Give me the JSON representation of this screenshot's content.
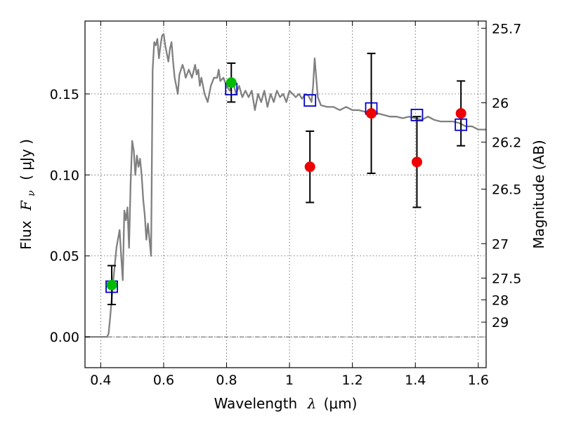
{
  "chart_data": {
    "type": "scatter",
    "xlabel": "Wavelength",
    "xlabel_symbol": "λ",
    "xlabel_unit": "(μm)",
    "ylabel": "Flux",
    "ylabel_symbol": "F",
    "ylabel_subscript": "ν",
    "ylabel_unit": "( μJy )",
    "y2label": "Magnitude (AB)",
    "xlim": [
      0.35,
      1.625
    ],
    "ylim": [
      -0.019,
      0.195
    ],
    "grid": true,
    "x_ticks": [
      {
        "value": 0.4,
        "label": "0.4"
      },
      {
        "value": 0.6,
        "label": "0.6"
      },
      {
        "value": 0.8,
        "label": "0.8"
      },
      {
        "value": 1.0,
        "label": "1"
      },
      {
        "value": 1.2,
        "label": "1.2"
      },
      {
        "value": 1.4,
        "label": "1.4"
      },
      {
        "value": 1.6,
        "label": "1.6"
      }
    ],
    "y_ticks": [
      {
        "value": 0.0,
        "label": "0.00"
      },
      {
        "value": 0.05,
        "label": "0.05"
      },
      {
        "value": 0.1,
        "label": "0.10"
      },
      {
        "value": 0.15,
        "label": "0.15"
      }
    ],
    "magnitude_ticks": [
      {
        "mag": 25.7,
        "label": "25.7"
      },
      {
        "mag": 26.0,
        "label": "26"
      },
      {
        "mag": 26.2,
        "label": "26.2"
      },
      {
        "mag": 26.5,
        "label": "26.5"
      },
      {
        "mag": 27.0,
        "label": "27"
      },
      {
        "mag": 27.5,
        "label": "27.5"
      },
      {
        "mag": 28.0,
        "label": "28"
      },
      {
        "mag": 29.0,
        "label": "29"
      }
    ],
    "model_spectrum": {
      "color": "#808080",
      "x": [
        0.35,
        0.42,
        0.425,
        0.43,
        0.44,
        0.45,
        0.46,
        0.465,
        0.47,
        0.475,
        0.48,
        0.485,
        0.49,
        0.495,
        0.5,
        0.505,
        0.51,
        0.515,
        0.52,
        0.525,
        0.53,
        0.535,
        0.54,
        0.545,
        0.55,
        0.555,
        0.56,
        0.565,
        0.57,
        0.575,
        0.58,
        0.585,
        0.59,
        0.595,
        0.6,
        0.605,
        0.61,
        0.615,
        0.62,
        0.625,
        0.63,
        0.635,
        0.64,
        0.645,
        0.65,
        0.66,
        0.665,
        0.67,
        0.68,
        0.69,
        0.7,
        0.705,
        0.71,
        0.715,
        0.72,
        0.73,
        0.74,
        0.75,
        0.76,
        0.77,
        0.775,
        0.78,
        0.79,
        0.8,
        0.81,
        0.82,
        0.83,
        0.84,
        0.85,
        0.86,
        0.87,
        0.88,
        0.89,
        0.9,
        0.91,
        0.92,
        0.93,
        0.94,
        0.95,
        0.96,
        0.97,
        0.98,
        0.99,
        1.0,
        1.01,
        1.02,
        1.03,
        1.04,
        1.05,
        1.06,
        1.07,
        1.075,
        1.08,
        1.085,
        1.09,
        1.1,
        1.12,
        1.14,
        1.16,
        1.18,
        1.2,
        1.22,
        1.24,
        1.26,
        1.28,
        1.3,
        1.32,
        1.34,
        1.36,
        1.38,
        1.4,
        1.42,
        1.44,
        1.46,
        1.48,
        1.5,
        1.52,
        1.54,
        1.56,
        1.58,
        1.6,
        1.625
      ],
      "y": [
        0.0,
        0.0,
        0.002,
        0.012,
        0.035,
        0.055,
        0.066,
        0.05,
        0.035,
        0.078,
        0.072,
        0.08,
        0.055,
        0.095,
        0.121,
        0.115,
        0.1,
        0.112,
        0.105,
        0.11,
        0.1,
        0.085,
        0.075,
        0.06,
        0.07,
        0.06,
        0.05,
        0.165,
        0.182,
        0.18,
        0.184,
        0.172,
        0.18,
        0.186,
        0.187,
        0.18,
        0.175,
        0.17,
        0.178,
        0.182,
        0.17,
        0.16,
        0.155,
        0.15,
        0.162,
        0.168,
        0.165,
        0.16,
        0.165,
        0.16,
        0.168,
        0.162,
        0.165,
        0.155,
        0.16,
        0.15,
        0.145,
        0.155,
        0.16,
        0.16,
        0.165,
        0.158,
        0.16,
        0.155,
        0.152,
        0.158,
        0.15,
        0.155,
        0.148,
        0.152,
        0.148,
        0.152,
        0.14,
        0.15,
        0.145,
        0.152,
        0.142,
        0.15,
        0.145,
        0.152,
        0.148,
        0.15,
        0.145,
        0.152,
        0.15,
        0.148,
        0.15,
        0.147,
        0.15,
        0.149,
        0.145,
        0.155,
        0.172,
        0.16,
        0.148,
        0.143,
        0.142,
        0.142,
        0.14,
        0.142,
        0.14,
        0.14,
        0.139,
        0.137,
        0.138,
        0.137,
        0.136,
        0.136,
        0.135,
        0.136,
        0.135,
        0.134,
        0.136,
        0.134,
        0.133,
        0.133,
        0.133,
        0.132,
        0.13,
        0.13,
        0.128,
        0.128
      ]
    },
    "model_photometry": {
      "marker": "open-square",
      "color": "#0000cc",
      "x": [
        0.435,
        0.815,
        1.065,
        1.26,
        1.405,
        1.545
      ],
      "y": [
        0.031,
        0.153,
        0.146,
        0.141,
        0.137,
        0.131
      ]
    },
    "detections": {
      "marker": "circle",
      "color": "#00bb00",
      "x": [
        0.435,
        0.815
      ],
      "y": [
        0.032,
        0.157
      ],
      "err": [
        0.012,
        0.012
      ]
    },
    "observations": {
      "marker": "circle",
      "color": "#ee0000",
      "x": [
        1.065,
        1.26,
        1.405,
        1.545
      ],
      "y": [
        0.105,
        0.138,
        0.108,
        0.138
      ],
      "err": [
        0.022,
        0.037,
        0.028,
        0.02
      ]
    }
  }
}
